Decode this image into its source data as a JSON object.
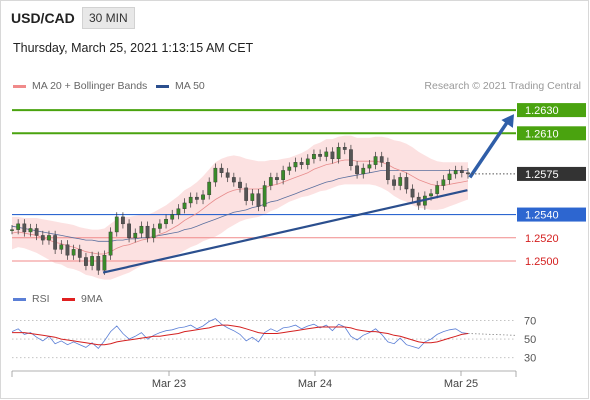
{
  "header": {
    "symbol": "USD/CAD",
    "interval": "30 MIN",
    "timestamp": "Thursday, March 25, 2021 1:13:15 AM CET"
  },
  "legend": {
    "ma_bb": {
      "label": "MA 20 + Bollinger Bands",
      "color": "#f08a8a"
    },
    "ma50": {
      "label": "MA 50",
      "color": "#2b4f8e"
    },
    "credit": "Research © 2021 Trading Central",
    "rsi": {
      "label": "RSI",
      "color": "#5b7fd6"
    },
    "rsi_ma": {
      "label": "9MA",
      "color": "#e02020"
    }
  },
  "chart_data": [
    {
      "type": "line",
      "panel": "price",
      "ylim": [
        1.2475,
        1.2643
      ],
      "x_ticks": [
        "Mar 23",
        "Mar 24",
        "Mar 25"
      ],
      "last_price": {
        "label": "1.2575",
        "value": 1.2575
      },
      "levels": [
        {
          "label": "1.2630",
          "value": 1.263,
          "kind": "resistance"
        },
        {
          "label": "1.2610",
          "value": 1.261,
          "kind": "resistance"
        },
        {
          "label": "1.2540",
          "value": 1.254,
          "kind": "pivot"
        },
        {
          "label": "1.2520",
          "value": 1.252,
          "kind": "support"
        },
        {
          "label": "1.2500",
          "value": 1.25,
          "kind": "support"
        }
      ],
      "trendline": {
        "from": [
          0.18,
          1.249
        ],
        "to": [
          0.9,
          1.2561
        ]
      },
      "arrow": {
        "from": [
          0.905,
          1.2572
        ],
        "to": [
          1.0,
          1.263
        ]
      },
      "price": [
        1.2527,
        1.2532,
        1.2525,
        1.2528,
        1.2522,
        1.2518,
        1.2522,
        1.251,
        1.2514,
        1.2505,
        1.251,
        1.2503,
        1.2496,
        1.2504,
        1.2492,
        1.2505,
        1.2525,
        1.2538,
        1.2532,
        1.252,
        1.2524,
        1.253,
        1.252,
        1.2528,
        1.2532,
        1.2536,
        1.254,
        1.2545,
        1.255,
        1.2555,
        1.2553,
        1.2557,
        1.2568,
        1.258,
        1.2576,
        1.2572,
        1.2568,
        1.2563,
        1.2552,
        1.2558,
        1.2547,
        1.2565,
        1.2572,
        1.257,
        1.2578,
        1.2581,
        1.2585,
        1.2583,
        1.2588,
        1.2592,
        1.259,
        1.2594,
        1.2588,
        1.2598,
        1.2596,
        1.2582,
        1.2575,
        1.258,
        1.2583,
        1.259,
        1.2585,
        1.257,
        1.2565,
        1.2572,
        1.2562,
        1.2555,
        1.2548,
        1.2556,
        1.2558,
        1.2565,
        1.257,
        1.2575,
        1.2578,
        1.2576,
        1.2575
      ],
      "ma20": [
        1.2524,
        1.2525,
        1.2524,
        1.2523,
        1.2522,
        1.252,
        1.2518,
        1.2516,
        1.2515,
        1.2513,
        1.2512,
        1.251,
        1.2508,
        1.2507,
        1.2506,
        1.2506,
        1.2508,
        1.2511,
        1.2513,
        1.2514,
        1.2516,
        1.2518,
        1.2519,
        1.2521,
        1.2523,
        1.2525,
        1.2528,
        1.2531,
        1.2535,
        1.2538,
        1.2541,
        1.2545,
        1.2549,
        1.2553,
        1.2556,
        1.2559,
        1.2561,
        1.2562,
        1.2562,
        1.2562,
        1.2562,
        1.2563,
        1.2565,
        1.2566,
        1.2568,
        1.257,
        1.2572,
        1.2574,
        1.2576,
        1.2579,
        1.2581,
        1.2583,
        1.2584,
        1.2586,
        1.2587,
        1.2587,
        1.2586,
        1.2586,
        1.2586,
        1.2586,
        1.2585,
        1.2583,
        1.258,
        1.2578,
        1.2576,
        1.2573,
        1.257,
        1.2568,
        1.2566,
        1.2565,
        1.2565,
        1.2566,
        1.2567,
        1.2568,
        1.2569
      ],
      "ma50": [
        1.253,
        1.2529,
        1.2528,
        1.2527,
        1.2526,
        1.2525,
        1.2524,
        1.2523,
        1.2522,
        1.2521,
        1.252,
        1.2519,
        1.2518,
        1.2518,
        1.2517,
        1.2517,
        1.2517,
        1.2518,
        1.2518,
        1.2519,
        1.2519,
        1.252,
        1.252,
        1.2521,
        1.2522,
        1.2523,
        1.2524,
        1.2525,
        1.2527,
        1.2528,
        1.253,
        1.2532,
        1.2534,
        1.2536,
        1.2538,
        1.254,
        1.2542,
        1.2543,
        1.2544,
        1.2546,
        1.2547,
        1.2549,
        1.2551,
        1.2552,
        1.2554,
        1.2556,
        1.2558,
        1.256,
        1.2562,
        1.2564,
        1.2566,
        1.2568,
        1.2569,
        1.2571,
        1.2572,
        1.2573,
        1.2574,
        1.2575,
        1.2576,
        1.2577,
        1.2578,
        1.2578,
        1.2578,
        1.2578,
        1.2578,
        1.2578,
        1.2578,
        1.2578,
        1.2578,
        1.2578,
        1.2578,
        1.2578,
        1.2578,
        1.2578,
        1.2578
      ],
      "bb_width": [
        0.0014,
        0.0013,
        0.0013,
        0.0014,
        0.0015,
        0.0016,
        0.0017,
        0.0018,
        0.0018,
        0.0019,
        0.0019,
        0.0019,
        0.002,
        0.002,
        0.0021,
        0.0022,
        0.0024,
        0.0025,
        0.0025,
        0.0024,
        0.0023,
        0.0022,
        0.0021,
        0.0021,
        0.0022,
        0.0023,
        0.0024,
        0.0025,
        0.0026,
        0.0026,
        0.0027,
        0.0028,
        0.003,
        0.0032,
        0.0032,
        0.0031,
        0.003,
        0.0028,
        0.0026,
        0.0025,
        0.0024,
        0.0023,
        0.0022,
        0.0021,
        0.002,
        0.0019,
        0.0019,
        0.0019,
        0.002,
        0.0021,
        0.0021,
        0.0022,
        0.0021,
        0.0021,
        0.0021,
        0.0021,
        0.002,
        0.002,
        0.002,
        0.0021,
        0.0022,
        0.0023,
        0.0024,
        0.0025,
        0.0025,
        0.0025,
        0.0024,
        0.0023,
        0.0022,
        0.0021,
        0.002,
        0.0019,
        0.0018,
        0.0017,
        0.0016
      ]
    },
    {
      "type": "line",
      "panel": "rsi",
      "ylim": [
        20,
        78
      ],
      "y_ticks": [
        {
          "label": "70",
          "value": 70
        },
        {
          "label": "50",
          "value": 50
        },
        {
          "label": "30",
          "value": 30
        }
      ],
      "rsi": [
        58,
        61,
        55,
        57,
        52,
        48,
        53,
        45,
        48,
        44,
        47,
        44,
        41,
        46,
        40,
        48,
        58,
        64,
        56,
        50,
        53,
        57,
        50,
        54,
        57,
        59,
        60,
        62,
        63,
        65,
        61,
        64,
        69,
        72,
        66,
        62,
        59,
        55,
        48,
        52,
        47,
        57,
        61,
        58,
        62,
        63,
        65,
        61,
        64,
        66,
        62,
        65,
        59,
        66,
        63,
        53,
        49,
        54,
        57,
        61,
        55,
        47,
        45,
        51,
        44,
        42,
        40,
        47,
        50,
        55,
        58,
        60,
        61,
        57,
        56
      ],
      "rsi_ma": [
        57,
        57,
        57,
        56,
        55,
        54,
        53,
        52,
        50,
        49,
        48,
        47,
        46,
        45,
        44,
        44,
        45,
        47,
        48,
        49,
        50,
        51,
        52,
        53,
        53,
        54,
        55,
        56,
        58,
        59,
        60,
        61,
        62,
        64,
        65,
        65,
        64,
        63,
        61,
        59,
        57,
        56,
        56,
        56,
        57,
        58,
        59,
        60,
        61,
        62,
        63,
        63,
        63,
        63,
        63,
        62,
        60,
        59,
        58,
        58,
        57,
        56,
        54,
        53,
        51,
        49,
        47,
        46,
        46,
        47,
        49,
        51,
        53,
        55,
        56
      ]
    }
  ]
}
